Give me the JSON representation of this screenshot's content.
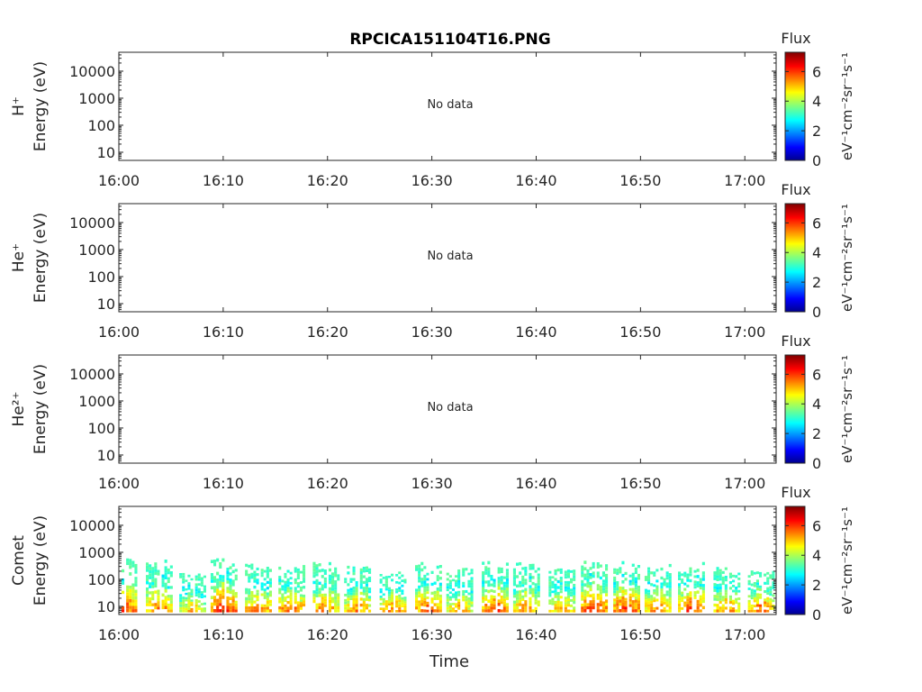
{
  "title": "RPCICA151104T16.PNG",
  "colorbar": {
    "label": "Flux",
    "unit_label": "eV⁻¹cm⁻²sr⁻¹s⁻¹",
    "ticks": [
      "0",
      "2",
      "4",
      "6"
    ],
    "range": [
      0,
      7.3
    ],
    "colormap": "jet"
  },
  "xlabel": "Time",
  "chart_data": [
    {
      "type": "heatmap",
      "species": "H+",
      "ylabel_species": "H⁺",
      "ylabel_energy": "Energy (eV)",
      "x_ticks": [
        "16:00",
        "16:10",
        "16:20",
        "16:30",
        "16:40",
        "16:50",
        "17:00"
      ],
      "xlim_minutes": [
        0,
        63
      ],
      "y_ticks": [
        "10",
        "100",
        "1000",
        "10000"
      ],
      "ylim": [
        5,
        50000
      ],
      "yscale": "log",
      "annotation": "No data",
      "bursts": []
    },
    {
      "type": "heatmap",
      "species": "He+",
      "ylabel_species": "He⁺",
      "ylabel_energy": "Energy (eV)",
      "x_ticks": [
        "16:00",
        "16:10",
        "16:20",
        "16:30",
        "16:40",
        "16:50",
        "17:00"
      ],
      "xlim_minutes": [
        0,
        63
      ],
      "y_ticks": [
        "10",
        "100",
        "1000",
        "10000"
      ],
      "ylim": [
        5,
        50000
      ],
      "yscale": "log",
      "annotation": "No data",
      "bursts": []
    },
    {
      "type": "heatmap",
      "species": "He2+",
      "ylabel_species": "He²⁺",
      "ylabel_energy": "Energy (eV)",
      "x_ticks": [
        "16:00",
        "16:10",
        "16:20",
        "16:30",
        "16:40",
        "16:50",
        "17:00"
      ],
      "xlim_minutes": [
        0,
        63
      ],
      "y_ticks": [
        "10",
        "100",
        "1000",
        "10000"
      ],
      "ylim": [
        5,
        50000
      ],
      "yscale": "log",
      "annotation": "No data",
      "bursts": []
    },
    {
      "type": "heatmap",
      "species": "Comet",
      "ylabel_species": "Comet",
      "ylabel_energy": "Energy (eV)",
      "x_ticks": [
        "16:00",
        "16:10",
        "16:20",
        "16:30",
        "16:40",
        "16:50",
        "17:00"
      ],
      "xlim_minutes": [
        0,
        63
      ],
      "y_ticks": [
        "10",
        "100",
        "1000",
        "10000"
      ],
      "ylim": [
        5,
        50000
      ],
      "yscale": "log",
      "annotation": "",
      "bursts": [
        {
          "t": 0.4,
          "flux_peak": 6.8,
          "e_max": 600
        },
        {
          "t": 3.8,
          "flux_peak": 6.5,
          "e_max": 500
        },
        {
          "t": 7.0,
          "flux_peak": 5.8,
          "e_max": 200
        },
        {
          "t": 10.0,
          "flux_peak": 7.0,
          "e_max": 600
        },
        {
          "t": 13.3,
          "flux_peak": 6.4,
          "e_max": 400
        },
        {
          "t": 16.5,
          "flux_peak": 6.6,
          "e_max": 350
        },
        {
          "t": 19.8,
          "flux_peak": 6.3,
          "e_max": 450
        },
        {
          "t": 22.8,
          "flux_peak": 6.2,
          "e_max": 300
        },
        {
          "t": 26.2,
          "flux_peak": 6.4,
          "e_max": 250
        },
        {
          "t": 29.6,
          "flux_peak": 6.6,
          "e_max": 400
        },
        {
          "t": 32.6,
          "flux_peak": 6.0,
          "e_max": 250
        },
        {
          "t": 36.0,
          "flux_peak": 6.8,
          "e_max": 450
        },
        {
          "t": 39.0,
          "flux_peak": 6.2,
          "e_max": 400
        },
        {
          "t": 42.4,
          "flux_peak": 6.0,
          "e_max": 300
        },
        {
          "t": 45.5,
          "flux_peak": 7.0,
          "e_max": 450
        },
        {
          "t": 48.6,
          "flux_peak": 6.9,
          "e_max": 450
        },
        {
          "t": 51.6,
          "flux_peak": 6.4,
          "e_max": 350
        },
        {
          "t": 54.8,
          "flux_peak": 6.8,
          "e_max": 400
        },
        {
          "t": 58.2,
          "flux_peak": 6.3,
          "e_max": 300
        },
        {
          "t": 61.5,
          "flux_peak": 6.6,
          "e_max": 300
        }
      ]
    }
  ]
}
